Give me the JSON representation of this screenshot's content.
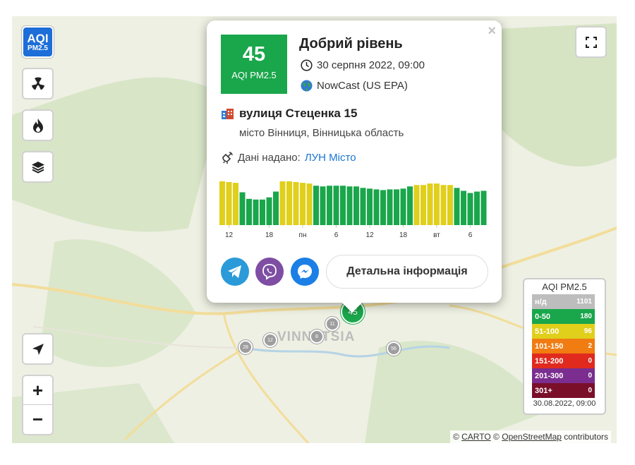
{
  "controls": {
    "aqi_line1": "AQI",
    "aqi_line2": "PM2.5",
    "zoom_in": "+",
    "zoom_out": "−"
  },
  "map": {
    "city_label": "VINNYTSIA",
    "markers": [
      "28",
      "12",
      "11",
      "8",
      "56"
    ],
    "active_marker": "45"
  },
  "popup": {
    "close": "×",
    "aqi_value": "45",
    "aqi_unit": "AQI PM2.5",
    "level": "Добрий рівень",
    "datetime": "30 серпня 2022, 09:00",
    "method": "NowCast (US EPA)",
    "address": "вулиця Стеценка 15",
    "city": "місто Вінниця, Вінницька область",
    "source_prefix": "Дані надано:",
    "source_name": "ЛУН Місто",
    "detail_button": "Детальна інформація",
    "share_icons": [
      "telegram-icon",
      "viber-icon",
      "messenger-icon"
    ]
  },
  "chart_data": {
    "type": "bar",
    "tick_labels": [
      "12",
      "18",
      "пн",
      "6",
      "12",
      "18",
      "вт",
      "6"
    ],
    "values": [
      60,
      59,
      58,
      45,
      36,
      35,
      35,
      38,
      46,
      60,
      60,
      59,
      58,
      57,
      54,
      53,
      54,
      54,
      54,
      53,
      53,
      51,
      50,
      49,
      48,
      49,
      49,
      50,
      53,
      55,
      55,
      57,
      57,
      55,
      55,
      51,
      47,
      44,
      46,
      47
    ],
    "colors": {
      "good": "#1aa64b",
      "moderate": "#e0cf1b"
    },
    "threshold": 54,
    "ylim": [
      0,
      60
    ]
  },
  "legend": {
    "title": "AQI PM2.5",
    "rows": [
      {
        "range": "н/д",
        "count": "1101",
        "color": "#bdbdbd"
      },
      {
        "range": "0-50",
        "count": "180",
        "color": "#1aa64b"
      },
      {
        "range": "51-100",
        "count": "96",
        "color": "#e0cf1b"
      },
      {
        "range": "101-150",
        "count": "2",
        "color": "#f07c12"
      },
      {
        "range": "151-200",
        "count": "0",
        "color": "#e02a1e"
      },
      {
        "range": "201-300",
        "count": "0",
        "color": "#7b2e8f"
      },
      {
        "range": "301+",
        "count": "0",
        "color": "#7a0f2a"
      }
    ],
    "timestamp": "30.08.2022, 09:00"
  },
  "attribution": {
    "c1": "©",
    "carto": "CARTO",
    "c2": "©",
    "osm": "OpenStreetMap",
    "tail": "contributors"
  }
}
